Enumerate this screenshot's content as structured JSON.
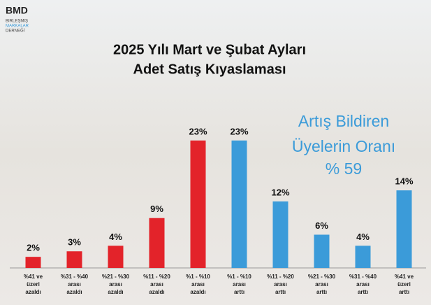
{
  "logo": {
    "name": "BMD",
    "lines": [
      "BIRLEŞMIŞ",
      "MARKALAR",
      "DERNEĞİ"
    ]
  },
  "chart_data": {
    "type": "bar",
    "title": [
      "2025 Yılı Mart ve Şubat Ayları",
      "Adet Satış Kıyaslaması"
    ],
    "categories": [
      "%41 ve\nüzeri\nazaldı",
      "%31 - %40\narası\nazaldı",
      "%21 - %30\narası\nazaldı",
      "%11 - %20\narası\nazaldı",
      "%1 - %10\narası\nazaldı",
      "%1 - %10\narası\narttı",
      "%11 - %20\narası\narttı",
      "%21 - %30\narası\narttı",
      "%31 - %40\narası\narttı",
      "%41 ve\nüzeri\narttı"
    ],
    "values": [
      2,
      3,
      4,
      9,
      23,
      23,
      12,
      6,
      4,
      14
    ],
    "value_labels": [
      "2%",
      "3%",
      "4%",
      "9%",
      "23%",
      "23%",
      "12%",
      "6%",
      "4%",
      "14%"
    ],
    "colors": [
      "#e3232a",
      "#e3232a",
      "#e3232a",
      "#e3232a",
      "#e3232a",
      "#3b9bd9",
      "#3b9bd9",
      "#3b9bd9",
      "#3b9bd9",
      "#3b9bd9"
    ],
    "ylim": [
      0,
      25
    ],
    "annotation": [
      "Artış Bildiren",
      "Üyelerin Oranı",
      "% 59"
    ]
  }
}
